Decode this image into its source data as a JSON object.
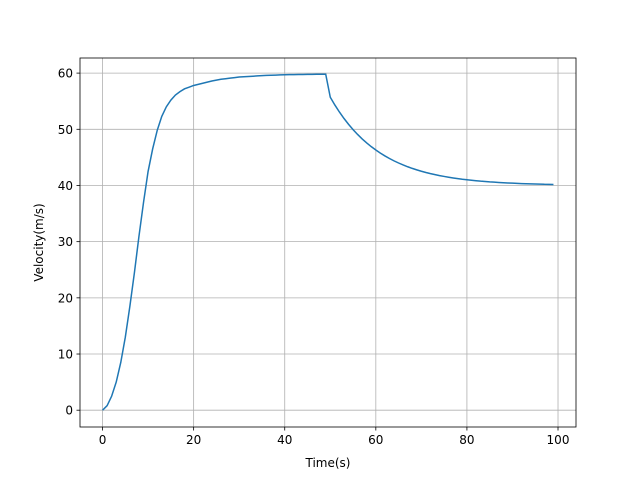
{
  "chart_data": {
    "type": "line",
    "xlabel": "Time(s)",
    "ylabel": "Velocity(m/s)",
    "x": [
      0,
      1,
      2,
      3,
      4,
      5,
      6,
      7,
      8,
      9,
      10,
      11,
      12,
      13,
      14,
      15,
      16,
      17,
      18,
      19,
      20,
      21,
      22,
      23,
      24,
      25,
      26,
      27,
      28,
      29,
      30,
      31,
      32,
      33,
      34,
      35,
      36,
      37,
      38,
      39,
      40,
      41,
      42,
      43,
      44,
      45,
      46,
      47,
      48,
      49,
      50,
      51,
      52,
      53,
      54,
      55,
      56,
      57,
      58,
      59,
      60,
      61,
      62,
      63,
      64,
      65,
      66,
      67,
      68,
      69,
      70,
      71,
      72,
      73,
      74,
      75,
      76,
      77,
      78,
      79,
      80,
      81,
      82,
      83,
      84,
      85,
      86,
      87,
      88,
      89,
      90,
      91,
      92,
      93,
      94,
      95,
      96,
      97,
      98,
      99
    ],
    "series": [
      {
        "color": "#1f77b4",
        "values": [
          0,
          0.8,
          2.5,
          5,
          8.5,
          13,
          18.5,
          24.5,
          31,
          37,
          42.5,
          46.5,
          49.8,
          52.3,
          54,
          55.2,
          56.1,
          56.7,
          57.2,
          57.5,
          57.8,
          58.0,
          58.2,
          58.4,
          58.6,
          58.75,
          58.9,
          59.0,
          59.1,
          59.2,
          59.3,
          59.35,
          59.4,
          59.45,
          59.5,
          59.55,
          59.6,
          59.62,
          59.65,
          59.68,
          59.7,
          59.72,
          59.74,
          59.75,
          59.76,
          59.77,
          59.78,
          59.79,
          59.8,
          59.8,
          55.7,
          54.33,
          53.08,
          51.94,
          50.9,
          49.95,
          49.08,
          48.29,
          47.57,
          46.91,
          46.31,
          45.76,
          45.26,
          44.8,
          44.38,
          44.0,
          43.65,
          43.33,
          43.04,
          42.78,
          42.53,
          42.31,
          42.11,
          41.93,
          41.76,
          41.61,
          41.47,
          41.34,
          41.22,
          41.11,
          41.02,
          40.93,
          40.85,
          40.77,
          40.71,
          40.64,
          40.59,
          40.54,
          40.49,
          40.45,
          40.41,
          40.37,
          40.34,
          40.31,
          40.28,
          40.26,
          40.24,
          40.21,
          40.2,
          40.18
        ]
      }
    ],
    "xlim": [
      -4.95,
      103.95
    ],
    "xticks": [
      0,
      20,
      40,
      60,
      80,
      100
    ],
    "ylim": [
      -2.99,
      62.69
    ],
    "yticks": [
      0,
      10,
      20,
      30,
      40,
      50,
      60
    ],
    "grid": true
  }
}
